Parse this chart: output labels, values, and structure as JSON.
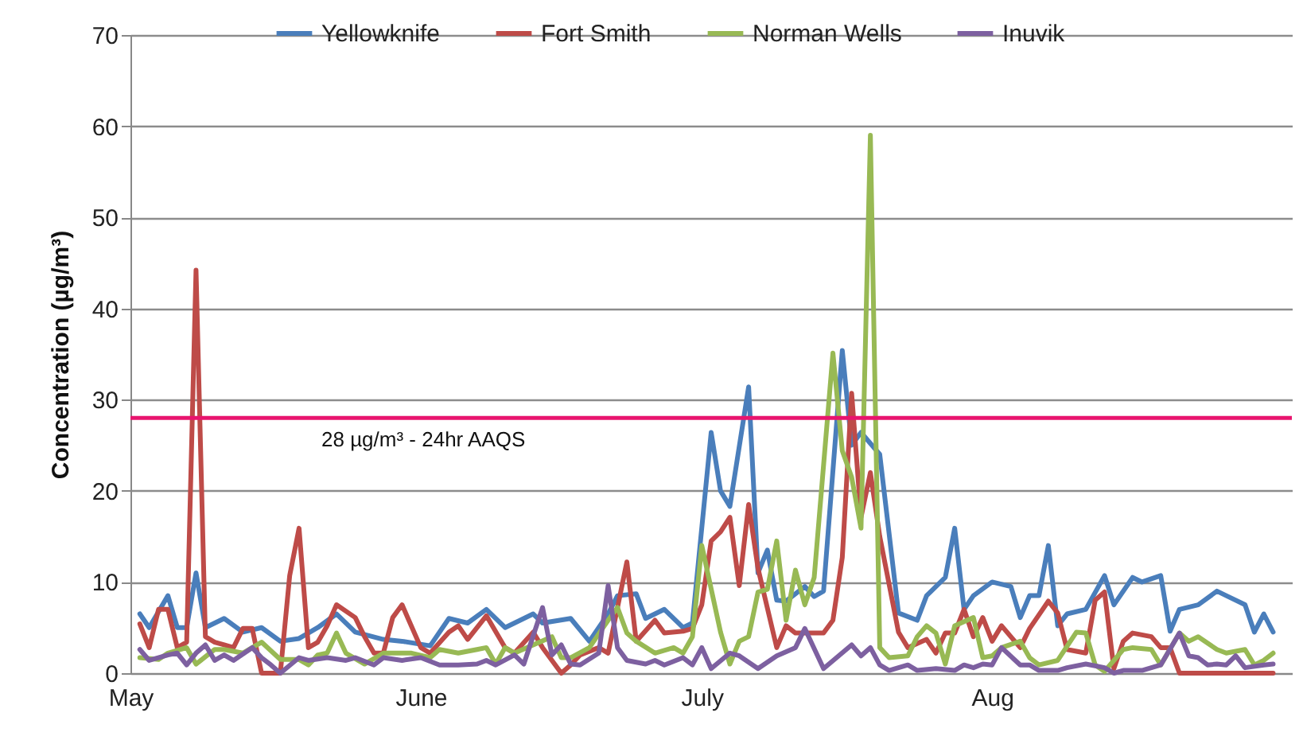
{
  "chart_data": {
    "type": "line",
    "ylabel": "Concentration (µg/m³)",
    "ylim": [
      0,
      70
    ],
    "yticks": [
      0,
      10,
      20,
      30,
      40,
      50,
      60,
      70
    ],
    "xlim": [
      "--05-01",
      "--09-02"
    ],
    "xticks": [
      {
        "value": "--05-01",
        "label": "May"
      },
      {
        "value": "--06-01",
        "label": "June"
      },
      {
        "value": "--07-01",
        "label": "July"
      },
      {
        "value": "--08-01",
        "label": "Aug"
      }
    ],
    "grid": "y",
    "legend": "top",
    "line_style": "solid",
    "marker": "none",
    "ref_lines": [
      {
        "axis": "y",
        "value": 28,
        "label": "28 µg/m³ -  24hr AAQS",
        "color": "#e8146e"
      }
    ],
    "series": [
      {
        "name": "Yellowknife",
        "color": "#4a7ebb",
        "x": [
          "--05-02",
          "--05-03",
          "--05-05",
          "--05-06",
          "--05-07",
          "--05-08",
          "--05-09",
          "--05-11",
          "--05-13",
          "--05-15",
          "--05-17",
          "--05-19",
          "--05-21",
          "--05-23",
          "--05-25",
          "--05-28",
          "--05-30",
          "--06-02",
          "--06-04",
          "--06-06",
          "--06-08",
          "--06-10",
          "--06-13",
          "--06-14",
          "--06-17",
          "--06-19",
          "--06-21",
          "--06-22",
          "--06-24",
          "--06-25",
          "--06-27",
          "--06-29",
          "--06-30",
          "--07-02",
          "--07-03",
          "--07-04",
          "--07-06",
          "--07-07",
          "--07-08",
          "--07-09",
          "--07-10",
          "--07-12",
          "--07-13",
          "--07-14",
          "--07-16",
          "--07-17",
          "--07-18",
          "--07-20",
          "--07-22",
          "--07-24",
          "--07-25",
          "--07-27",
          "--07-28",
          "--07-29",
          "--07-30",
          "--08-01",
          "--08-03",
          "--08-04",
          "--08-05",
          "--08-06",
          "--08-07",
          "--08-08",
          "--08-09",
          "--08-11",
          "--08-13",
          "--08-14",
          "--08-16",
          "--08-17",
          "--08-19",
          "--08-20",
          "--08-21",
          "--08-23",
          "--08-25",
          "--08-26",
          "--08-28",
          "--08-29",
          "--08-30",
          "--08-31"
        ],
        "values": [
          6.5,
          5,
          8.5,
          5,
          5,
          11,
          5,
          6,
          4.5,
          5,
          3.5,
          3.8,
          5,
          6.5,
          4.5,
          3.7,
          3.5,
          3,
          6,
          5.5,
          7,
          5,
          6.5,
          5.5,
          6,
          3.5,
          6.5,
          8.5,
          8.7,
          6,
          7,
          5,
          5.5,
          26.4,
          20,
          18.3,
          31.4,
          11,
          13.5,
          8,
          7.9,
          9.5,
          8.4,
          9,
          35.4,
          25,
          26.4,
          24,
          6.6,
          5.8,
          8.5,
          10.5,
          15.9,
          7,
          8.5,
          10,
          9.5,
          6.1,
          8.5,
          8.5,
          14,
          5.2,
          6.5,
          7,
          10.7,
          7.5,
          10.5,
          10,
          10.7,
          4.6,
          7,
          7.5,
          9,
          8.5,
          7.5,
          4.5,
          6.5,
          4.5
        ]
      },
      {
        "name": "Fort Smith",
        "color": "#be4b48",
        "x": [
          "--05-02",
          "--05-03",
          "--05-04",
          "--05-05",
          "--05-06",
          "--05-07",
          "--05-08",
          "--05-09",
          "--05-10",
          "--05-11",
          "--05-12",
          "--05-13",
          "--05-14",
          "--05-15",
          "--05-17",
          "--05-18",
          "--05-19",
          "--05-20",
          "--05-21",
          "--05-22",
          "--05-23",
          "--05-25",
          "--05-26",
          "--05-27",
          "--05-28",
          "--05-29",
          "--05-30",
          "--06-01",
          "--06-02",
          "--06-04",
          "--06-05",
          "--06-06",
          "--06-08",
          "--06-10",
          "--06-11",
          "--06-13",
          "--06-14",
          "--06-16",
          "--06-17",
          "--06-18",
          "--06-20",
          "--06-21",
          "--06-23",
          "--06-24",
          "--06-26",
          "--06-27",
          "--06-29",
          "--06-30",
          "--07-01",
          "--07-02",
          "--07-03",
          "--07-04",
          "--07-05",
          "--07-06",
          "--07-07",
          "--07-09",
          "--07-10",
          "--07-11",
          "--07-14",
          "--07-15",
          "--07-16",
          "--07-17",
          "--07-18",
          "--07-19",
          "--07-20",
          "--07-22",
          "--07-23",
          "--07-25",
          "--07-26",
          "--07-27",
          "--07-28",
          "--07-29",
          "--07-30",
          "--07-31",
          "--08-01",
          "--08-02",
          "--08-04",
          "--08-05",
          "--08-07",
          "--08-08",
          "--08-09",
          "--08-11",
          "--08-12",
          "--08-13",
          "--08-14",
          "--08-15",
          "--08-16",
          "--08-18",
          "--08-19",
          "--08-20",
          "--08-21",
          "--08-31"
        ],
        "values": [
          5.4,
          2.8,
          7,
          7,
          2.8,
          3.4,
          44.2,
          4,
          3.4,
          3.1,
          2.8,
          4.9,
          4.9,
          0,
          0,
          10.7,
          15.9,
          2.8,
          3.4,
          5.2,
          7.5,
          6.1,
          4,
          2.2,
          2.2,
          6.1,
          7.5,
          2.8,
          2.2,
          4.5,
          5.2,
          3.7,
          6.3,
          2.8,
          2.2,
          4.5,
          2.8,
          0,
          0.9,
          2,
          2.8,
          2.2,
          12.2,
          3.5,
          5.8,
          4.4,
          4.6,
          4.9,
          7.5,
          14.5,
          15.5,
          17.1,
          9.6,
          18.5,
          11.5,
          2.8,
          5.2,
          4.4,
          4.4,
          5.8,
          12.7,
          30.7,
          17.1,
          22,
          15,
          4.5,
          2.8,
          3.7,
          2.2,
          4.4,
          4.4,
          7,
          4,
          6.1,
          3.5,
          5.2,
          2.8,
          4.9,
          7.9,
          6.6,
          2.6,
          2.2,
          8,
          8.9,
          0.5,
          3.5,
          4.4,
          4,
          2.8,
          2.8,
          0,
          0
        ]
      },
      {
        "name": "Norman Wells",
        "color": "#98b954",
        "x": [
          "--05-02",
          "--05-04",
          "--05-05",
          "--05-07",
          "--05-08",
          "--05-10",
          "--05-11",
          "--05-13",
          "--05-14",
          "--05-15",
          "--05-17",
          "--05-19",
          "--05-20",
          "--05-21",
          "--05-22",
          "--05-23",
          "--05-24",
          "--05-26",
          "--05-28",
          "--05-29",
          "--05-31",
          "--06-02",
          "--06-03",
          "--06-05",
          "--06-07",
          "--06-08",
          "--06-09",
          "--06-10",
          "--06-11",
          "--06-13",
          "--06-15",
          "--06-16",
          "--06-17",
          "--06-19",
          "--06-21",
          "--06-22",
          "--06-23",
          "--06-24",
          "--06-26",
          "--06-28",
          "--06-29",
          "--06-30",
          "--07-01",
          "--07-03",
          "--07-04",
          "--07-05",
          "--07-06",
          "--07-07",
          "--07-08",
          "--07-09",
          "--07-10",
          "--07-11",
          "--07-12",
          "--07-13",
          "--07-15",
          "--07-16",
          "--07-17",
          "--07-18",
          "--07-19",
          "--07-20",
          "--07-21",
          "--07-23",
          "--07-24",
          "--07-25",
          "--07-26",
          "--07-27",
          "--07-28",
          "--07-30",
          "--07-31",
          "--08-01",
          "--08-02",
          "--08-04",
          "--08-05",
          "--08-06",
          "--08-08",
          "--08-10",
          "--08-11",
          "--08-12",
          "--08-13",
          "--08-15",
          "--08-16",
          "--08-18",
          "--08-19",
          "--08-21",
          "--08-22",
          "--08-23",
          "--08-25",
          "--08-26",
          "--08-28",
          "--08-29",
          "--08-30",
          "--08-31"
        ],
        "values": [
          1.7,
          1.5,
          2.2,
          2.8,
          1,
          2.6,
          2.6,
          2.2,
          2.8,
          3.4,
          1.5,
          1.5,
          0.9,
          2,
          2.2,
          4.4,
          2.2,
          1,
          2.2,
          2.2,
          2.2,
          1.7,
          2.6,
          2.2,
          2.6,
          2.8,
          1,
          2.8,
          2.2,
          3.1,
          4,
          1.7,
          1.7,
          2.8,
          5.8,
          7.2,
          4.4,
          3.5,
          2.2,
          2.8,
          2.2,
          4,
          14,
          4.5,
          1,
          3.5,
          4,
          8.9,
          9.2,
          14.5,
          5.8,
          11.3,
          7.5,
          10.5,
          35.1,
          24.4,
          21.5,
          15.9,
          59,
          2.8,
          1.7,
          1.9,
          4,
          5.2,
          4.4,
          1,
          5.2,
          6.1,
          1.7,
          1.9,
          2.8,
          3.5,
          1.7,
          0.9,
          1.4,
          4.5,
          4.4,
          0.9,
          0.2,
          2.6,
          2.8,
          2.6,
          0.9,
          4.4,
          3.5,
          4,
          2.6,
          2.2,
          2.6,
          0.9,
          1.4,
          2.2
        ]
      },
      {
        "name": "Inuvik",
        "color": "#7d60a0",
        "x": [
          "--05-02",
          "--05-03",
          "--05-05",
          "--05-06",
          "--05-07",
          "--05-08",
          "--05-09",
          "--05-10",
          "--05-11",
          "--05-12",
          "--05-14",
          "--05-15",
          "--05-16",
          "--05-17",
          "--05-19",
          "--05-20",
          "--05-22",
          "--05-24",
          "--05-25",
          "--05-27",
          "--05-28",
          "--05-30",
          "--06-01",
          "--06-03",
          "--06-05",
          "--06-07",
          "--06-08",
          "--06-09",
          "--06-11",
          "--06-12",
          "--06-14",
          "--06-15",
          "--06-16",
          "--06-17",
          "--06-18",
          "--06-20",
          "--06-21",
          "--06-22",
          "--06-23",
          "--06-25",
          "--06-26",
          "--06-27",
          "--06-29",
          "--06-30",
          "--07-01",
          "--07-02",
          "--07-04",
          "--07-05",
          "--07-07",
          "--07-09",
          "--07-11",
          "--07-12",
          "--07-14",
          "--07-17",
          "--07-18",
          "--07-19",
          "--07-20",
          "--07-21",
          "--07-23",
          "--07-24",
          "--07-26",
          "--07-28",
          "--07-29",
          "--07-30",
          "--07-31",
          "--08-01",
          "--08-02",
          "--08-04",
          "--08-05",
          "--08-06",
          "--08-08",
          "--08-09",
          "--08-11",
          "--08-13",
          "--08-14",
          "--08-15",
          "--08-17",
          "--08-19",
          "--08-21",
          "--08-22",
          "--08-23",
          "--08-24",
          "--08-25",
          "--08-26",
          "--08-27",
          "--08-28",
          "--08-30",
          "--08-31"
        ],
        "values": [
          2.6,
          1.4,
          2,
          2.2,
          0.9,
          2.2,
          3.1,
          1.4,
          2,
          1.4,
          2.8,
          1.7,
          0.9,
          0,
          1.7,
          1.4,
          1.7,
          1.4,
          1.7,
          0.9,
          1.7,
          1.4,
          1.7,
          0.9,
          0.9,
          1,
          1.4,
          0.9,
          2,
          1,
          7.2,
          2,
          3.1,
          1,
          0.9,
          2.2,
          9.6,
          2.8,
          1.4,
          1,
          1.4,
          0.9,
          1.7,
          0.9,
          2.8,
          0.5,
          2.2,
          1.9,
          0.5,
          1.9,
          2.8,
          4.9,
          0.5,
          3.1,
          1.9,
          2.8,
          0.9,
          0.3,
          0.9,
          0.3,
          0.5,
          0.3,
          0.9,
          0.6,
          1,
          0.9,
          2.8,
          0.9,
          0.9,
          0.3,
          0.3,
          0.6,
          1,
          0.6,
          0,
          0.3,
          0.3,
          0.9,
          4.4,
          1.9,
          1.7,
          0.9,
          1,
          0.9,
          1.9,
          0.6,
          0.9,
          1
        ]
      }
    ]
  }
}
